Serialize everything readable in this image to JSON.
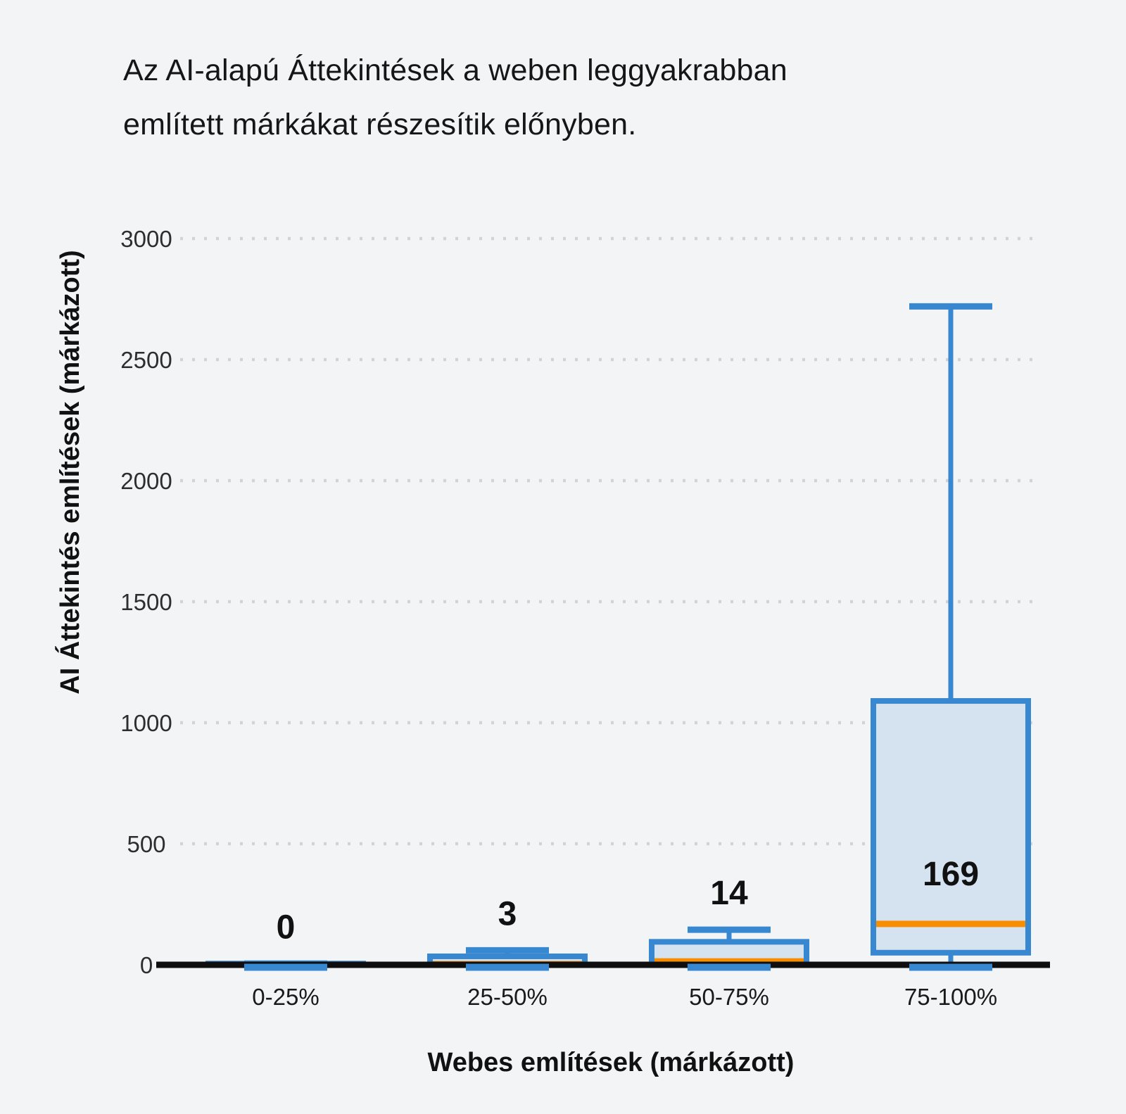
{
  "title": {
    "line1": "Az AI-alapú Áttekintések a weben leggyakrabban",
    "line2": "említett márkákat részesítik előnyben."
  },
  "chart_data": {
    "type": "boxplot",
    "title": "Az AI-alapú Áttekintések a weben leggyakrabban említett márkákat részesítik előnyben.",
    "xlabel": "Webes említések (márkázott)",
    "ylabel": "AI Áttekintés említések (márkázott)",
    "categories": [
      "0-25%",
      "25-50%",
      "50-75%",
      "75-100%"
    ],
    "y_ticks": [
      0,
      500,
      1000,
      1500,
      2000,
      2500,
      3000
    ],
    "ylim": [
      0,
      3000
    ],
    "grid": "horizontal dotted gridlines at each tick above 0",
    "legend": "none",
    "boxes": [
      {
        "category": "0-25%",
        "min": 0,
        "q1": 0,
        "median": 0,
        "q3": 5,
        "max": 5,
        "label": "0"
      },
      {
        "category": "25-50%",
        "min": 0,
        "q1": 0,
        "median": 3,
        "q3": 35,
        "max": 60,
        "label": "3"
      },
      {
        "category": "50-75%",
        "min": 0,
        "q1": 2,
        "median": 14,
        "q3": 95,
        "max": 145,
        "label": "14"
      },
      {
        "category": "75-100%",
        "min": 0,
        "q1": 50,
        "median": 169,
        "q3": 1090,
        "max": 2720,
        "label": "169"
      }
    ],
    "colors": {
      "box_border": "#3787d1",
      "box_fill": "#d5e2ef",
      "median": "#f98d00",
      "axis": "#0f0f0f",
      "grid": "#d2d3d7",
      "text": "#161616",
      "background": "#f3f4f6"
    }
  }
}
